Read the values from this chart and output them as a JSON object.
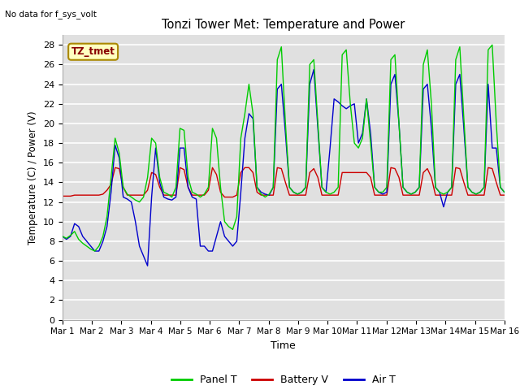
{
  "title": "Tonzi Tower Met: Temperature and Power",
  "ylabel": "Temperature (C) / Power (V)",
  "xlabel": "Time",
  "no_data_text": "No data for f_sys_volt",
  "annotation_label": "TZ_tmet",
  "ylim": [
    0,
    29
  ],
  "yticks": [
    0,
    2,
    4,
    6,
    8,
    10,
    12,
    14,
    16,
    18,
    20,
    22,
    24,
    26,
    28
  ],
  "x_tick_labels": [
    "Mar 1",
    "Mar 2",
    "Mar 3",
    "Mar 4",
    "Mar 5",
    "Mar 6",
    "Mar 7",
    "Mar 8",
    "Mar 9",
    "Mar 10",
    "Mar 11",
    "Mar 12",
    "Mar 13",
    "Mar 14",
    "Mar 15",
    "Mar 16"
  ],
  "panel_color": "#00CC00",
  "battery_color": "#CC0000",
  "air_color": "#0000CC",
  "bg_color": "#E0E0E0",
  "legend_labels": [
    "Panel T",
    "Battery V",
    "Air T"
  ],
  "legend_colors": [
    "#00CC00",
    "#CC0000",
    "#0000CC"
  ],
  "panel_t": [
    8.5,
    8.3,
    8.6,
    9.0,
    8.2,
    7.8,
    7.5,
    7.2,
    7.0,
    7.5,
    8.5,
    10.5,
    14.5,
    18.5,
    17.0,
    13.5,
    12.8,
    12.5,
    12.2,
    12.0,
    12.5,
    14.5,
    18.5,
    18.0,
    14.5,
    13.0,
    12.8,
    12.5,
    13.5,
    19.5,
    19.3,
    14.5,
    13.0,
    12.8,
    12.5,
    12.8,
    13.5,
    19.5,
    18.5,
    13.5,
    10.0,
    9.5,
    9.2,
    10.5,
    18.5,
    21.0,
    24.0,
    21.0,
    13.5,
    12.8,
    12.5,
    12.8,
    13.5,
    26.5,
    27.8,
    20.0,
    13.5,
    13.0,
    12.8,
    13.0,
    13.5,
    26.0,
    26.5,
    20.0,
    13.5,
    13.0,
    12.8,
    13.0,
    13.5,
    27.0,
    27.5,
    22.0,
    18.0,
    17.5,
    18.5,
    22.5,
    18.0,
    13.5,
    13.0,
    13.0,
    13.5,
    26.5,
    27.0,
    20.0,
    13.5,
    13.0,
    12.8,
    13.0,
    13.5,
    26.0,
    27.5,
    22.0,
    13.5,
    13.0,
    12.8,
    13.0,
    13.5,
    26.5,
    27.8,
    20.5,
    13.5,
    13.0,
    12.8,
    13.0,
    13.5,
    27.5,
    28.0,
    20.0,
    13.5,
    13.0
  ],
  "battery_v": [
    12.6,
    12.6,
    12.6,
    12.7,
    12.7,
    12.7,
    12.7,
    12.7,
    12.7,
    12.7,
    12.8,
    13.2,
    13.8,
    15.5,
    15.4,
    13.5,
    12.7,
    12.7,
    12.7,
    12.7,
    12.7,
    13.2,
    15.0,
    14.8,
    13.5,
    12.7,
    12.7,
    12.7,
    12.7,
    15.5,
    15.3,
    13.5,
    12.7,
    12.7,
    12.7,
    12.7,
    13.2,
    15.5,
    14.8,
    13.0,
    12.5,
    12.5,
    12.5,
    12.7,
    15.0,
    15.5,
    15.5,
    15.0,
    13.0,
    12.7,
    12.7,
    12.7,
    12.7,
    15.5,
    15.4,
    14.0,
    12.7,
    12.7,
    12.7,
    12.7,
    12.7,
    15.0,
    15.4,
    14.5,
    12.7,
    12.7,
    12.7,
    12.7,
    12.7,
    15.0,
    15.0,
    15.0,
    15.0,
    15.0,
    15.0,
    15.0,
    14.5,
    12.7,
    12.7,
    12.7,
    12.7,
    15.5,
    15.4,
    14.5,
    12.7,
    12.7,
    12.7,
    12.7,
    12.7,
    15.0,
    15.4,
    14.5,
    12.7,
    12.7,
    12.7,
    12.7,
    12.7,
    15.5,
    15.4,
    14.0,
    12.7,
    12.7,
    12.7,
    12.7,
    12.7,
    15.5,
    15.4,
    14.0,
    12.7,
    12.7
  ],
  "air_t": [
    8.5,
    8.2,
    8.5,
    9.8,
    9.5,
    8.5,
    8.0,
    7.5,
    7.0,
    7.0,
    8.0,
    9.5,
    13.0,
    17.8,
    16.5,
    12.5,
    12.3,
    12.0,
    10.0,
    7.5,
    6.5,
    5.5,
    12.5,
    17.5,
    14.0,
    12.5,
    12.3,
    12.2,
    12.5,
    17.5,
    17.5,
    13.5,
    12.5,
    12.3,
    7.5,
    7.5,
    7.0,
    7.0,
    8.5,
    10.0,
    8.5,
    8.0,
    7.5,
    8.0,
    13.0,
    18.5,
    21.0,
    20.5,
    13.5,
    13.0,
    12.8,
    12.7,
    13.5,
    23.5,
    24.0,
    19.0,
    13.5,
    13.0,
    12.8,
    13.0,
    13.5,
    24.0,
    25.5,
    19.5,
    13.5,
    13.0,
    17.5,
    22.5,
    22.2,
    21.8,
    21.5,
    21.8,
    22.0,
    18.0,
    19.0,
    22.5,
    19.0,
    13.5,
    13.0,
    12.8,
    13.0,
    24.0,
    25.0,
    20.0,
    13.5,
    13.0,
    12.8,
    13.0,
    13.5,
    23.5,
    24.0,
    19.5,
    13.5,
    13.0,
    11.5,
    13.0,
    13.5,
    24.0,
    25.0,
    19.5,
    13.5,
    13.0,
    12.8,
    13.0,
    13.5,
    24.0,
    17.5,
    17.5,
    13.5,
    13.0
  ]
}
